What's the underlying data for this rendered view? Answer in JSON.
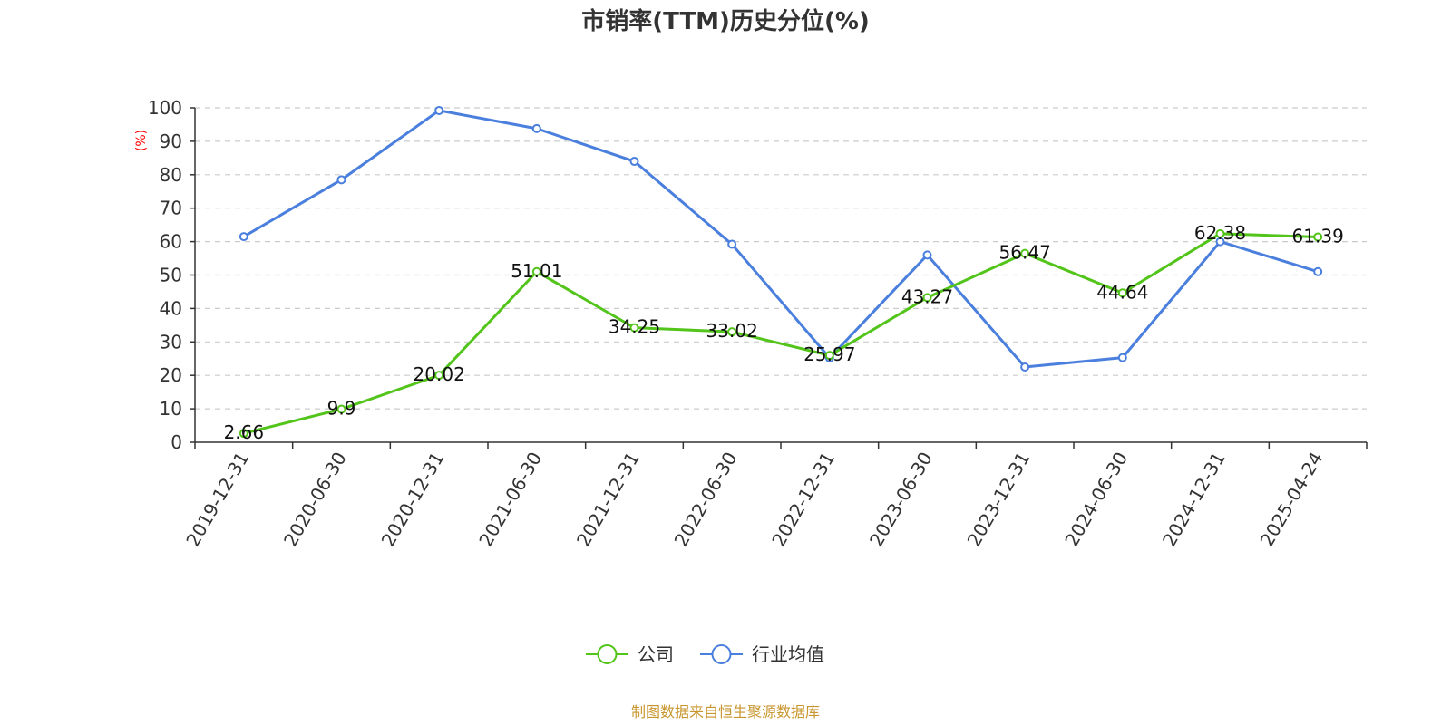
{
  "chart_data": {
    "type": "line",
    "title": "市销率(TTM)历史分位(%)",
    "xlabel": "",
    "ylabel": "(%)",
    "categories": [
      "2019-12-31",
      "2020-06-30",
      "2020-12-31",
      "2021-06-30",
      "2021-12-31",
      "2022-06-30",
      "2022-12-31",
      "2023-06-30",
      "2023-12-31",
      "2024-06-30",
      "2024-12-31",
      "2025-04-24"
    ],
    "ylim": [
      0,
      100
    ],
    "yticks": [
      0,
      10,
      20,
      30,
      40,
      50,
      60,
      70,
      80,
      90,
      100
    ],
    "grid": "horizontal-dashed",
    "legend_position": "bottom-center",
    "series": [
      {
        "name": "公司",
        "color": "#52c41a",
        "values": [
          2.66,
          9.9,
          20.02,
          51.01,
          34.25,
          33.02,
          25.97,
          43.27,
          56.47,
          44.64,
          62.38,
          61.39
        ],
        "labels": [
          "2.66",
          "9.9",
          "20.02",
          "51.01",
          "34.25",
          "33.02",
          "25.97",
          "43.27",
          "56.47",
          "44.64",
          "62.38",
          "61.39"
        ]
      },
      {
        "name": "行业均值",
        "color": "#4a7fdd",
        "values": [
          61.5,
          78.5,
          99.2,
          93.8,
          84.0,
          59.2,
          25.2,
          56.0,
          22.5,
          25.3,
          60.0,
          51.0
        ]
      }
    ]
  },
  "source": "制图数据来自恒生聚源数据库",
  "colors": {
    "ylabel": "#ff0000",
    "source": "#c8962e",
    "axis": "#333333",
    "grid": "#cccccc"
  }
}
